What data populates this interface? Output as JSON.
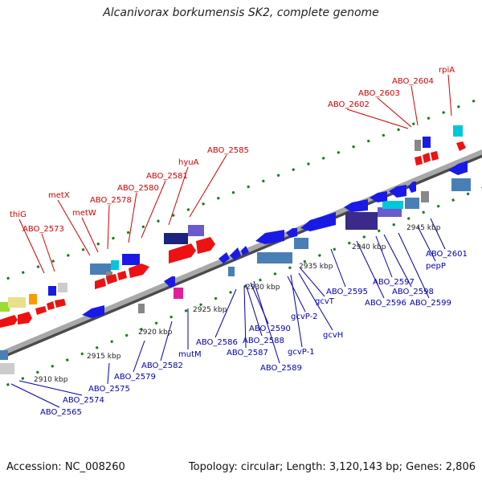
{
  "title": "Alcanivorax borkumensis SK2, complete genome",
  "footer": {
    "accession": "Accession: NC_008260",
    "summary": "Topology: circular; Length: 3,120,143 bp; Genes: 2,806"
  },
  "colors": {
    "backbone": "#9a9a9a",
    "tick": "#1a7a1a",
    "forward_label": "#d00000",
    "reverse_label": "#0000b0",
    "gene_blue": "#1a1ae6",
    "gene_red": "#ee1111",
    "gene_steel": "#4a7fb5",
    "gene_navy": "#1a237e",
    "gene_purple": "#6a5acd",
    "gene_cyan": "#00c8d8",
    "gene_gray": "#888888",
    "gene_magenta": "#e0209a",
    "gene_orange": "#ff9900",
    "gene_khaki": "#e8e08a",
    "gene_lime": "#99dd33"
  },
  "forward_labels": [
    "thiG",
    "ABO_2573",
    "metX",
    "metW",
    "ABO_2578",
    "ABO_2580",
    "ABO_2581",
    "hyuA",
    "ABO_2585",
    "ABO_2602",
    "ABO_2603",
    "ABO_2604",
    "rpiA"
  ],
  "reverse_labels": [
    "ABO_2565",
    "ABO_2574",
    "ABO_2575",
    "ABO_2579",
    "ABO_2582",
    "mutM",
    "ABO_2586",
    "ABO_2587",
    "ABO_2588",
    "ABO_2589",
    "ABO_2590",
    "gcvP-1",
    "gcvH",
    "gcvP-2",
    "gcvT",
    "ABO_2595",
    "ABO_2596",
    "ABO_2597",
    "ABO_2598",
    "ABO_2599",
    "pepP",
    "ABO_2601"
  ],
  "kbp_labels": [
    "2910 kbp",
    "2915 kbp",
    "2920 kbp",
    "2925 kbp",
    "2930 kbp",
    "2935 kbp",
    "2940 kbp",
    "2945 kbp"
  ]
}
